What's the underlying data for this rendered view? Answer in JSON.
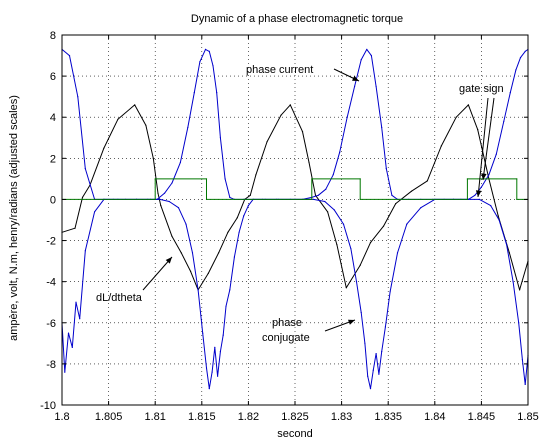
{
  "chart_data": {
    "type": "line",
    "title": "Dynamic of a phase electromagnetic torque",
    "xlabel": "second",
    "ylabel": "ampère, volt, N.m, henry/radians (adjusted scales)",
    "xlim": [
      1.8,
      1.85
    ],
    "ylim": [
      -10,
      8
    ],
    "x_ticks": [
      "1.8",
      "1.805",
      "1.81",
      "1.815",
      "1.82",
      "1.825",
      "1.83",
      "1.835",
      "1.84",
      "1.845",
      "1.85"
    ],
    "y_ticks": [
      "-10",
      "-8",
      "-6",
      "-4",
      "-2",
      "0",
      "2",
      "4",
      "6",
      "8"
    ],
    "grid": true,
    "annotations": [
      {
        "text": "phase current"
      },
      {
        "text": "gate sign"
      },
      {
        "text": "dL/dtheta"
      },
      {
        "text": "phase",
        "text2": "conjugate"
      }
    ],
    "series": [
      {
        "color": "#000000",
        "x": [
          1.8,
          1.8014,
          1.8022,
          1.803,
          1.8045,
          1.806,
          1.8078,
          1.809,
          1.8098,
          1.8103,
          1.8106,
          1.8118,
          1.8128,
          1.8138,
          1.8146,
          1.8157,
          1.8168,
          1.8178,
          1.8188,
          1.8196,
          1.8202,
          1.8208,
          1.822,
          1.8235,
          1.8245,
          1.8258,
          1.8265,
          1.8272,
          1.8285,
          1.8295,
          1.8305,
          1.832,
          1.8331,
          1.8345,
          1.8358,
          1.8375,
          1.8392,
          1.8407,
          1.8423,
          1.8436,
          1.8446,
          1.8458,
          1.8468,
          1.848,
          1.8491,
          1.85
        ],
        "y": [
          -1.6,
          -1.4,
          0.1,
          0.7,
          2.5,
          3.9,
          4.6,
          3.6,
          2.0,
          0.3,
          -0.3,
          -1.8,
          -2.6,
          -3.5,
          -4.4,
          -3.6,
          -2.6,
          -1.6,
          -0.9,
          0.0,
          0.2,
          1.2,
          2.8,
          4.1,
          4.6,
          3.3,
          1.8,
          0.2,
          -0.6,
          -2.2,
          -4.3,
          -3.2,
          -2.1,
          -1.3,
          -0.2,
          0.4,
          0.9,
          2.6,
          4.0,
          4.6,
          3.4,
          1.0,
          -0.8,
          -2.6,
          -4.4,
          -3.0
        ]
      },
      {
        "color": "#0000cc",
        "x": [
          1.8,
          1.8008,
          1.8017,
          1.8025,
          1.8035,
          1.8045,
          1.8055,
          1.8068,
          1.808,
          1.8092,
          1.8102,
          1.811,
          1.8118,
          1.8127,
          1.8135,
          1.8142,
          1.8148,
          1.8154,
          1.8158,
          1.8162,
          1.8166,
          1.817,
          1.8175,
          1.818,
          1.8185,
          1.8195,
          1.8205,
          1.8218,
          1.8232,
          1.8245,
          1.8258,
          1.8268,
          1.8275,
          1.8283,
          1.8291,
          1.8298,
          1.8306,
          1.8314,
          1.8321,
          1.8327,
          1.8332,
          1.8337,
          1.8343,
          1.8348,
          1.8354,
          1.836,
          1.8372,
          1.8385,
          1.8398,
          1.841,
          1.842,
          1.8428,
          1.8436,
          1.8443,
          1.845,
          1.8458,
          1.8466,
          1.8474,
          1.8481,
          1.8487,
          1.8492,
          1.8497,
          1.85
        ],
        "y": [
          7.3,
          7.0,
          5.0,
          1.5,
          0.0,
          0.0,
          0.0,
          0.0,
          0.0,
          0.0,
          0.0,
          0.3,
          0.8,
          1.8,
          3.5,
          5.2,
          6.7,
          7.3,
          7.2,
          6.5,
          5.2,
          3.0,
          1.0,
          0.1,
          0.0,
          0.0,
          0.0,
          0.0,
          0.0,
          0.0,
          0.0,
          0.1,
          0.2,
          0.5,
          1.2,
          2.3,
          4.0,
          5.5,
          6.8,
          7.3,
          7.0,
          5.5,
          3.5,
          1.5,
          0.2,
          0.0,
          0.0,
          0.0,
          0.0,
          0.0,
          0.0,
          0.0,
          0.0,
          0.2,
          0.6,
          1.2,
          2.2,
          3.8,
          5.2,
          6.3,
          6.9,
          7.2,
          7.3
        ]
      },
      {
        "color": "#0000cc",
        "x": [
          1.8,
          1.8003,
          1.8007,
          1.8011,
          1.8015,
          1.8019,
          1.8025,
          1.8035,
          1.8045,
          1.806,
          1.808,
          1.8095,
          1.8105,
          1.8115,
          1.8125,
          1.8133,
          1.814,
          1.8146,
          1.8151,
          1.8155,
          1.8158,
          1.8161,
          1.8164,
          1.8167,
          1.817,
          1.8173,
          1.8176,
          1.818,
          1.8185,
          1.819,
          1.8195,
          1.82,
          1.8205,
          1.8215,
          1.823,
          1.825,
          1.827,
          1.8282,
          1.8292,
          1.8302,
          1.831,
          1.8316,
          1.8321,
          1.8325,
          1.8328,
          1.8331,
          1.8334,
          1.8337,
          1.834,
          1.8343,
          1.8347,
          1.8352,
          1.836,
          1.837,
          1.8385,
          1.84,
          1.842,
          1.8435,
          1.8448,
          1.846,
          1.8469,
          1.8477,
          1.8484,
          1.849,
          1.8494,
          1.8497,
          1.85
        ],
        "y": [
          -6.0,
          -8.4,
          -6.5,
          -7.2,
          -5.0,
          -5.8,
          -2.5,
          -0.6,
          0.0,
          0.0,
          0.0,
          0.0,
          0.0,
          -0.1,
          -0.4,
          -1.2,
          -2.6,
          -4.4,
          -6.5,
          -8.2,
          -9.2,
          -8.4,
          -7.2,
          -8.6,
          -7.4,
          -6.6,
          -5.2,
          -4.4,
          -2.8,
          -1.6,
          -0.8,
          -0.3,
          0.0,
          0.0,
          0.0,
          0.0,
          0.0,
          -0.1,
          -0.5,
          -1.2,
          -2.4,
          -4.0,
          -5.5,
          -7.0,
          -8.6,
          -9.2,
          -8.3,
          -7.5,
          -8.5,
          -7.4,
          -6.2,
          -4.5,
          -2.6,
          -1.2,
          -0.4,
          0.0,
          0.0,
          0.0,
          0.0,
          -0.3,
          -1.0,
          -2.2,
          -4.0,
          -6.0,
          -7.8,
          -9.0,
          -7.6
        ]
      },
      {
        "color": "#007700",
        "x": [
          1.8,
          1.81,
          1.81,
          1.8155,
          1.8155,
          1.8268,
          1.8268,
          1.832,
          1.832,
          1.8435,
          1.8435,
          1.8488,
          1.8488,
          1.85
        ],
        "y": [
          0,
          0,
          1,
          1,
          0,
          0,
          1,
          1,
          0,
          0,
          1,
          1,
          0,
          0
        ]
      }
    ]
  }
}
